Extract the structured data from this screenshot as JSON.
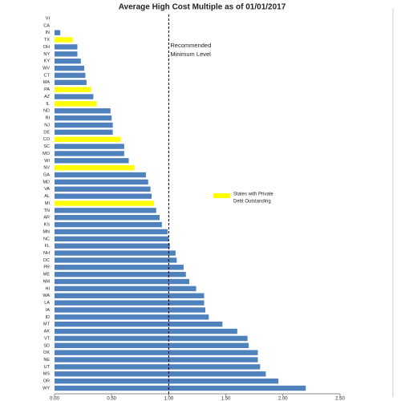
{
  "chart_data": {
    "type": "bar",
    "orientation": "horizontal",
    "title": "Average High Cost Multiple as of 01/01/2017",
    "categories": [
      "VI",
      "CA",
      "IN",
      "TX",
      "OH",
      "NY",
      "KY",
      "WV",
      "CT",
      "MA",
      "PA",
      "AZ",
      "IL",
      "ND",
      "RI",
      "NJ",
      "DE",
      "CO",
      "SC",
      "MO",
      "WI",
      "NV",
      "GA",
      "MD",
      "VA",
      "AL",
      "MI",
      "TN",
      "AR",
      "KS",
      "MN",
      "NC",
      "FL",
      "NH",
      "DC",
      "PR",
      "ME",
      "NM",
      "HI",
      "WA",
      "LA",
      "IA",
      "ID",
      "MT",
      "AK",
      "VT",
      "SD",
      "OK",
      "NE",
      "UT",
      "MS",
      "OR",
      "WY"
    ],
    "values": [
      0,
      0,
      0.05,
      0.16,
      0.2,
      0.2,
      0.23,
      0.26,
      0.27,
      0.28,
      0.32,
      0.34,
      0.37,
      0.49,
      0.5,
      0.51,
      0.51,
      0.58,
      0.61,
      0.61,
      0.65,
      0.7,
      0.8,
      0.82,
      0.84,
      0.85,
      0.87,
      0.89,
      0.92,
      0.94,
      0.99,
      1.0,
      1.01,
      1.06,
      1.07,
      1.13,
      1.15,
      1.18,
      1.24,
      1.31,
      1.31,
      1.32,
      1.35,
      1.47,
      1.6,
      1.69,
      1.7,
      1.78,
      1.78,
      1.8,
      1.85,
      1.96,
      2.2
    ],
    "colors": [
      "#4f81bd",
      "#4f81bd",
      "#4f81bd",
      "#ffff00",
      "#4f81bd",
      "#4f81bd",
      "#4f81bd",
      "#4f81bd",
      "#4f81bd",
      "#4f81bd",
      "#ffff00",
      "#4f81bd",
      "#ffff00",
      "#4f81bd",
      "#4f81bd",
      "#4f81bd",
      "#4f81bd",
      "#ffff00",
      "#4f81bd",
      "#4f81bd",
      "#4f81bd",
      "#ffff00",
      "#4f81bd",
      "#4f81bd",
      "#4f81bd",
      "#4f81bd",
      "#ffff00",
      "#4f81bd",
      "#4f81bd",
      "#4f81bd",
      "#4f81bd",
      "#4f81bd",
      "#4f81bd",
      "#4f81bd",
      "#4f81bd",
      "#4f81bd",
      "#4f81bd",
      "#4f81bd",
      "#4f81bd",
      "#4f81bd",
      "#4f81bd",
      "#4f81bd",
      "#4f81bd",
      "#4f81bd",
      "#4f81bd",
      "#4f81bd",
      "#4f81bd",
      "#4f81bd",
      "#4f81bd",
      "#4f81bd",
      "#4f81bd",
      "#4f81bd",
      "#4f81bd"
    ],
    "xlim": [
      0,
      2.5
    ],
    "xticks": [
      {
        "value": 0,
        "label": "0.00"
      },
      {
        "value": 0.5,
        "label": "0.50"
      },
      {
        "value": 1,
        "label": "1.00"
      },
      {
        "value": 1.5,
        "label": "1.50"
      },
      {
        "value": 2,
        "label": "2.00"
      },
      {
        "value": 2.5,
        "label": "2.50"
      }
    ],
    "reference_line": {
      "value": 1,
      "color": "#c00000",
      "label_lines": [
        "Recommended",
        "Minimum Level"
      ]
    },
    "legend": {
      "color": "#ffff00",
      "lines": [
        "States with Private",
        "Debt Outstanding"
      ]
    }
  }
}
